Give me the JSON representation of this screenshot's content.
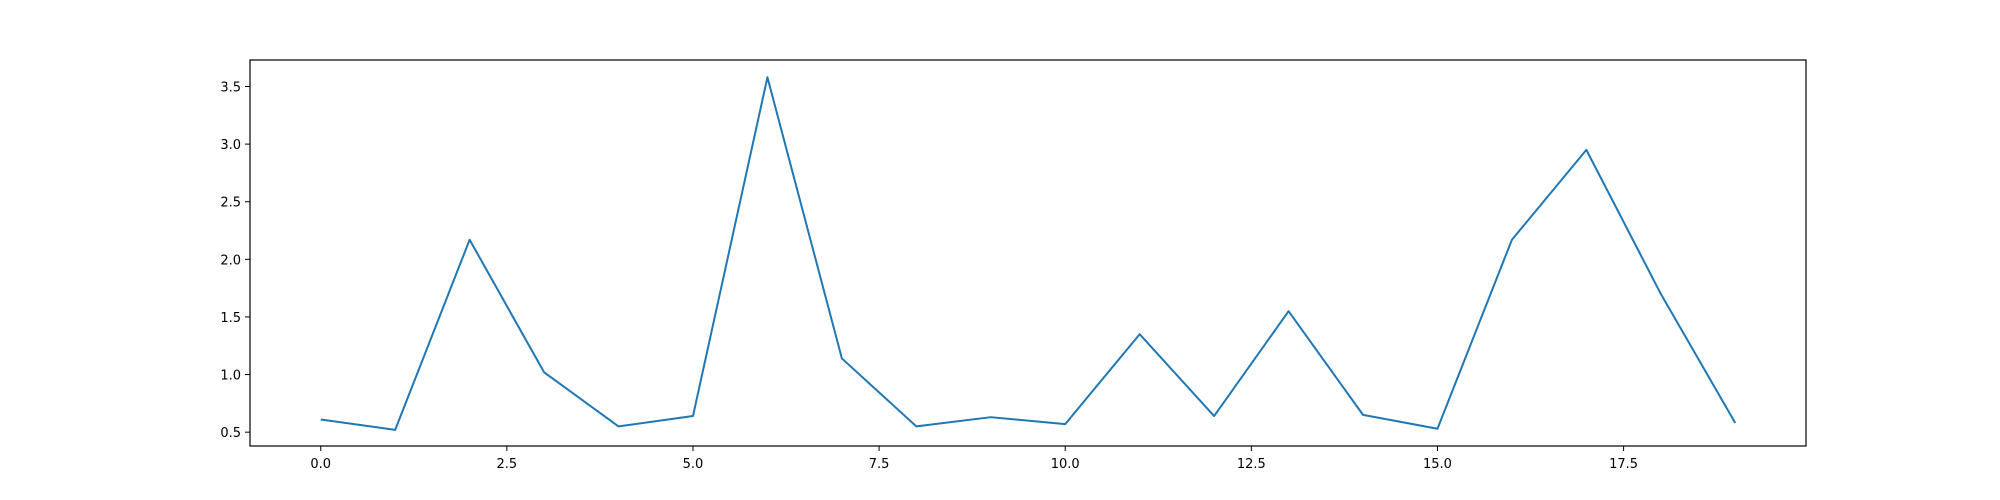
{
  "chart_data": {
    "type": "line",
    "title": "",
    "xlabel": "",
    "ylabel": "",
    "xlim": [
      -0.95,
      19.95
    ],
    "ylim": [
      0.38,
      3.73
    ],
    "grid": false,
    "x_ticks": [
      0.0,
      2.5,
      5.0,
      7.5,
      10.0,
      12.5,
      15.0,
      17.5
    ],
    "x_tick_labels": [
      "0.0",
      "2.5",
      "5.0",
      "7.5",
      "10.0",
      "12.5",
      "15.0",
      "17.5"
    ],
    "y_ticks": [
      0.5,
      1.0,
      1.5,
      2.0,
      2.5,
      3.0,
      3.5
    ],
    "y_tick_labels": [
      "0.5",
      "1.0",
      "1.5",
      "2.0",
      "2.5",
      "3.0",
      "3.5"
    ],
    "series": [
      {
        "color": "#1f77b4",
        "x": [
          0,
          1,
          2,
          3,
          4,
          5,
          6,
          7,
          8,
          9,
          10,
          11,
          12,
          13,
          14,
          15,
          16,
          17,
          18,
          19
        ],
        "y": [
          0.61,
          0.52,
          2.17,
          1.02,
          0.55,
          0.64,
          3.58,
          1.14,
          0.55,
          0.63,
          0.57,
          1.35,
          0.64,
          1.55,
          0.65,
          0.53,
          2.17,
          2.95,
          1.7,
          0.58
        ]
      }
    ]
  }
}
